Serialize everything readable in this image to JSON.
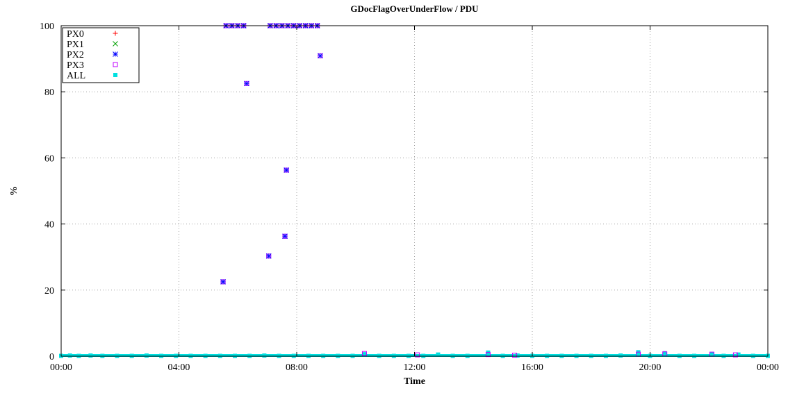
{
  "chart_data": {
    "type": "scatter",
    "title": "GDocFlagOverUnderFlow / PDU",
    "xlabel": "Time",
    "ylabel": "%",
    "xlim": [
      0,
      24
    ],
    "ylim": [
      0,
      100
    ],
    "x_ticks": [
      "00:00",
      "04:00",
      "08:00",
      "12:00",
      "16:00",
      "20:00",
      "00:00"
    ],
    "y_ticks": [
      "0",
      "20",
      "40",
      "60",
      "80",
      "100"
    ],
    "grid": true,
    "legend_position": "top-left",
    "legend": [
      "PX0",
      "PX1",
      "PX2",
      "PX3",
      "ALL"
    ],
    "series": [
      {
        "name": "PX0",
        "color": "#ff0000",
        "marker": "plus",
        "x": [
          5.6,
          5.8,
          6.0,
          6.2,
          7.1,
          7.3,
          7.5,
          7.7,
          7.9,
          8.1,
          8.3,
          8.5,
          8.7
        ],
        "y": [
          100,
          100,
          100,
          100,
          100,
          100,
          100,
          100,
          100,
          100,
          100,
          100,
          100
        ]
      },
      {
        "name": "PX1",
        "color": "#00a000",
        "marker": "cross",
        "x": [
          5.6,
          5.8,
          6.0,
          6.2,
          7.1,
          7.3,
          7.5,
          7.7,
          7.9,
          8.1,
          8.3,
          8.5,
          8.7
        ],
        "y": [
          100,
          100,
          100,
          100,
          100,
          100,
          100,
          100,
          100,
          100,
          100,
          100,
          100
        ]
      },
      {
        "name": "PX2",
        "color": "#0000ff",
        "marker": "star",
        "x": [
          5.5,
          6.3,
          7.05,
          7.6,
          7.65,
          8.8,
          5.6,
          5.8,
          6.0,
          6.2,
          7.1,
          7.3,
          7.5,
          7.7,
          7.9,
          8.1,
          8.3,
          8.5,
          8.7
        ],
        "y": [
          22.5,
          82.5,
          30.3,
          36.3,
          56.3,
          90.9,
          100,
          100,
          100,
          100,
          100,
          100,
          100,
          100,
          100,
          100,
          100,
          100,
          100
        ]
      },
      {
        "name": "PX3",
        "color": "#c000ff",
        "marker": "square",
        "x": [
          5.5,
          6.3,
          7.05,
          7.6,
          7.65,
          8.8,
          5.6,
          5.8,
          6.0,
          6.2,
          7.1,
          7.3,
          7.5,
          7.7,
          7.9,
          8.1,
          8.3,
          8.5,
          8.7,
          10.3,
          12.1,
          14.5,
          15.4,
          19.6,
          20.5,
          22.1,
          22.9
        ],
        "y": [
          22.5,
          82.5,
          30.3,
          36.3,
          56.3,
          90.9,
          100,
          100,
          100,
          100,
          100,
          100,
          100,
          100,
          100,
          100,
          100,
          100,
          100,
          0.8,
          0.4,
          0.5,
          0.3,
          0.6,
          0.7,
          0.6,
          0.4
        ]
      },
      {
        "name": "ALL",
        "color": "#00e0e0",
        "marker": "filled-square",
        "x": [
          0.0,
          0.3,
          0.6,
          1.0,
          1.4,
          1.9,
          2.4,
          2.9,
          3.4,
          3.9,
          4.4,
          4.9,
          5.4,
          5.9,
          6.4,
          6.9,
          7.4,
          7.9,
          8.4,
          8.9,
          9.4,
          9.9,
          10.3,
          10.8,
          11.3,
          11.8,
          12.3,
          12.8,
          13.3,
          13.8,
          14.5,
          15.0,
          15.5,
          16.0,
          16.5,
          17.0,
          17.5,
          18.0,
          18.5,
          19.0,
          19.6,
          20.0,
          20.5,
          21.0,
          21.5,
          22.1,
          22.5,
          23.0,
          23.5,
          24.0
        ],
        "y": [
          0.1,
          0.2,
          0.1,
          0.2,
          0.1,
          0.1,
          0.1,
          0.2,
          0.1,
          0.1,
          0.1,
          0.1,
          0.1,
          0.1,
          0.1,
          0.2,
          0.1,
          0.1,
          0.1,
          0.1,
          0.1,
          0.1,
          0.6,
          0.1,
          0.1,
          0.1,
          0.1,
          0.5,
          0.1,
          0.1,
          1.1,
          0.1,
          0.2,
          0.1,
          0.1,
          0.1,
          0.1,
          0.1,
          0.1,
          0.2,
          1.2,
          0.1,
          0.9,
          0.1,
          0.1,
          0.7,
          0.1,
          0.5,
          0.1,
          0.1
        ]
      }
    ]
  }
}
